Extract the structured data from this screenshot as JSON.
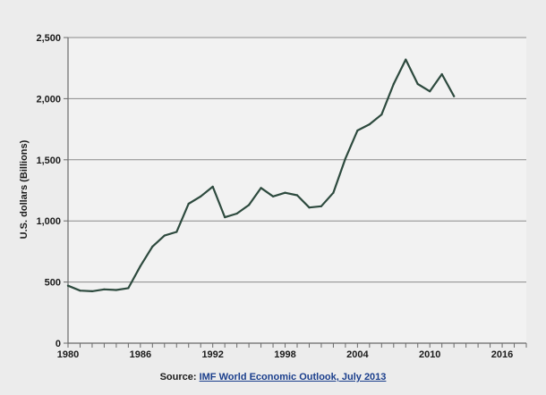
{
  "chart_data": {
    "type": "line",
    "title": "",
    "xlabel": "",
    "ylabel": "U.S. dollars (Billions)",
    "xlim": [
      1980,
      2018
    ],
    "ylim": [
      0,
      2500
    ],
    "x_ticks": [
      1980,
      1986,
      1992,
      1998,
      2004,
      2010,
      2016
    ],
    "x_tick_labels": [
      "1980",
      "1986",
      "1992",
      "1998",
      "2004",
      "2010",
      "2016"
    ],
    "y_ticks": [
      0,
      500,
      1000,
      1500,
      2000,
      2500
    ],
    "y_tick_labels": [
      "0",
      "500",
      "1,000",
      "1,500",
      "2,000",
      "2,500"
    ],
    "grid": "horizontal",
    "legend": "none",
    "line_color": "#2d4a3e",
    "series": [
      {
        "x": [
          1980,
          1981,
          1982,
          1983,
          1984,
          1985,
          1986,
          1987,
          1988,
          1989,
          1990,
          1991,
          1992,
          1993,
          1994,
          1995,
          1996,
          1997,
          1998,
          1999,
          2000,
          2001,
          2002,
          2003,
          2004,
          2005,
          2006,
          2007,
          2008,
          2009,
          2010,
          2011,
          2012
        ],
        "values": [
          470,
          430,
          425,
          440,
          435,
          450,
          630,
          790,
          880,
          910,
          1140,
          1200,
          1280,
          1030,
          1060,
          1130,
          1270,
          1200,
          1230,
          1210,
          1110,
          1120,
          1230,
          1510,
          1740,
          1790,
          1870,
          2120,
          2320,
          2120,
          2060,
          2200,
          2020
        ]
      }
    ]
  },
  "source": {
    "prefix": "Source: ",
    "link_text": "IMF World Economic Outlook, July 2013"
  }
}
